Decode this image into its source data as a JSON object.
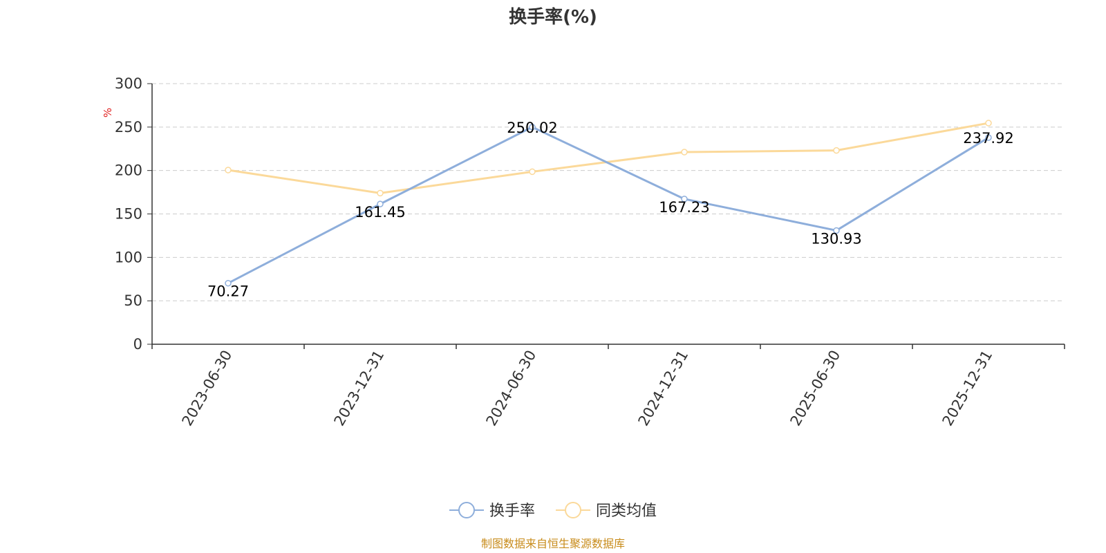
{
  "chart_data": {
    "type": "line",
    "title": "换手率(%)",
    "y_unit": "%",
    "categories": [
      "2023-06-30",
      "2023-12-31",
      "2024-06-30",
      "2024-12-31",
      "2025-06-30",
      "2025-12-31"
    ],
    "ylim": [
      0,
      300
    ],
    "y_ticks": [
      0,
      50,
      100,
      150,
      200,
      250,
      300
    ],
    "grid": true,
    "legend_position": "bottom",
    "series": [
      {
        "name": "换手率",
        "values": [
          70.27,
          161.45,
          250.02,
          167.23,
          130.93,
          237.92
        ],
        "color": "#8eaedb",
        "labels": [
          "70.27",
          "161.45",
          "250.02",
          "167.23",
          "130.93",
          "237.92"
        ]
      },
      {
        "name": "同类均值",
        "values": [
          200.5,
          174.0,
          198.6,
          221.2,
          223.1,
          254.6
        ],
        "color": "#fbd99a"
      }
    ]
  },
  "source_note": "制图数据来自恒生聚源数据库",
  "colors": {
    "unit": "#e0201f",
    "source": "#c88c1c",
    "axis": "#333333",
    "grid": "#cccccc"
  }
}
